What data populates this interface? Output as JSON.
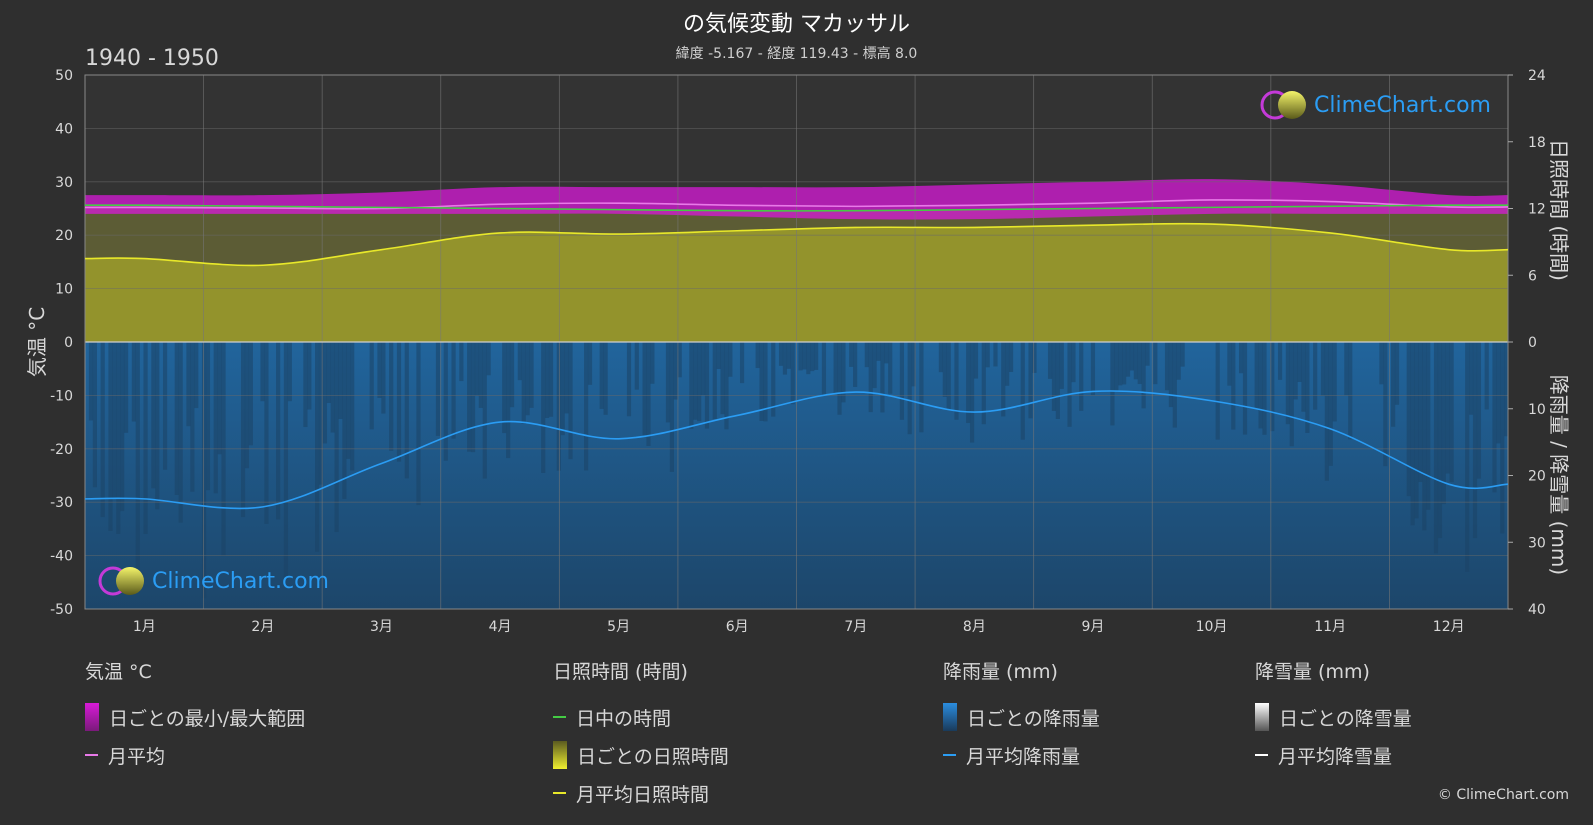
{
  "title": "の気候変動 マカッサル",
  "subtitle": "緯度 -5.167 - 経度 119.43 - 標高 8.0",
  "period": "1940 - 1950",
  "logo_text": "ClimeChart.com",
  "copyright": "© ClimeChart.com",
  "colors": {
    "temp_range": "#d81ad8",
    "temp_avg": "#e879e8",
    "daylight": "#44cc44",
    "sunshine_fill": "#9c9c2a",
    "sunshine_avg": "#e8e82a",
    "rain_fill": "#1f6aa8",
    "rain_avg": "#2b9df4",
    "snow_avg": "#ffffff"
  },
  "chart_data": {
    "type": "area",
    "months": [
      "1月",
      "2月",
      "3月",
      "4月",
      "5月",
      "6月",
      "7月",
      "8月",
      "9月",
      "10月",
      "11月",
      "12月"
    ],
    "axes": {
      "left": {
        "label": "気温 °C",
        "range": [
          -50,
          50
        ],
        "ticks": [
          "50",
          "40",
          "30",
          "20",
          "10",
          "0",
          "-10",
          "-20",
          "-30",
          "-40",
          "-50"
        ]
      },
      "right_top": {
        "label": "日照時間 (時間)",
        "range": [
          0,
          24
        ],
        "ticks": [
          "24",
          "18",
          "12",
          "6",
          "0"
        ]
      },
      "right_bottom": {
        "label": "降雨量 / 降雪量 (mm)",
        "range": [
          0,
          40
        ],
        "ticks": [
          "10",
          "20",
          "30",
          "40"
        ]
      }
    },
    "grid": true,
    "series": {
      "temp_daily_max": [
        27.5,
        27.5,
        28,
        29,
        29,
        29,
        29,
        29.5,
        30,
        30.5,
        29.5,
        27.5
      ],
      "temp_daily_min": [
        24,
        24,
        24,
        24,
        24,
        23.5,
        23,
        23,
        23.5,
        24,
        24,
        24
      ],
      "temp_monthly_avg": [
        25.2,
        25.1,
        25.0,
        25.8,
        26.0,
        25.6,
        25.4,
        25.6,
        26.0,
        26.6,
        26.3,
        25.3
      ],
      "daylight_hours": [
        12.3,
        12.2,
        12.1,
        12.0,
        11.9,
        11.8,
        11.8,
        11.9,
        12.0,
        12.1,
        12.2,
        12.3
      ],
      "sunshine_monthly_avg": [
        7.5,
        6.9,
        8.3,
        9.8,
        9.7,
        10.0,
        10.3,
        10.3,
        10.5,
        10.6,
        9.8,
        8.3
      ],
      "rain_monthly_avg": [
        23.5,
        24.7,
        18.2,
        12.0,
        14.5,
        11.0,
        7.5,
        10.5,
        7.4,
        8.8,
        13.0,
        21.3
      ],
      "snow_monthly_avg": [
        0,
        0,
        0,
        0,
        0,
        0,
        0,
        0,
        0,
        0,
        0,
        0
      ]
    }
  },
  "legend": {
    "temp": {
      "title": "気温 °C",
      "items": [
        "日ごとの最小/最大範囲",
        "月平均"
      ]
    },
    "sun": {
      "title": "日照時間 (時間)",
      "items": [
        "日中の時間",
        "日ごとの日照時間",
        "月平均日照時間"
      ]
    },
    "rain": {
      "title": "降雨量 (mm)",
      "items": [
        "日ごとの降雨量",
        "月平均降雨量"
      ]
    },
    "snow": {
      "title": "降雪量 (mm)",
      "items": [
        "日ごとの降雪量",
        "月平均降雪量"
      ]
    }
  }
}
